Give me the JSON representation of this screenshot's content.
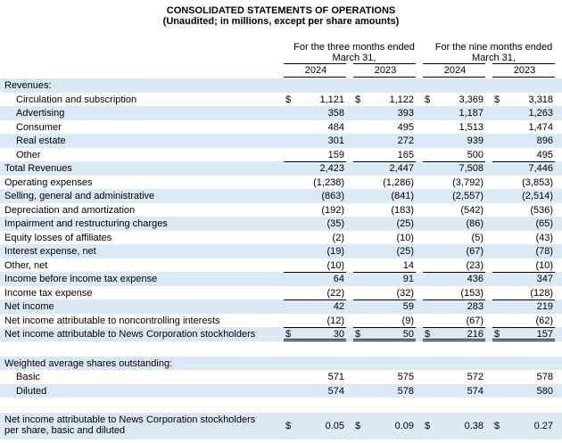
{
  "header": {
    "title": "CONSOLIDATED STATEMENTS OF OPERATIONS",
    "subtitle": "(Unaudited; in millions, except per share amounts)"
  },
  "columns": {
    "groups": [
      "For the three months ended March 31,",
      "For the nine months ended March 31,"
    ],
    "years": [
      "2024",
      "2023",
      "2024",
      "2023"
    ]
  },
  "currency": "$",
  "rows": [
    {
      "label": "Revenues:"
    },
    {
      "label": "Circulation and subscription",
      "indent": 1,
      "dollar": true,
      "cells": [
        "1,121",
        "1,122",
        "3,369",
        "3,318"
      ]
    },
    {
      "label": "Advertising",
      "indent": 1,
      "cells": [
        "358",
        "393",
        "1,187",
        "1,263"
      ]
    },
    {
      "label": "Consumer",
      "indent": 1,
      "cells": [
        "484",
        "495",
        "1,513",
        "1,474"
      ]
    },
    {
      "label": "Real estate",
      "indent": 1,
      "cells": [
        "301",
        "272",
        "939",
        "896"
      ]
    },
    {
      "label": "Other",
      "indent": 1,
      "cells": [
        "159",
        "165",
        "500",
        "495"
      ]
    },
    {
      "label": "Total Revenues",
      "rule": "single",
      "cells": [
        "2,423",
        "2,447",
        "7,508",
        "7,446"
      ]
    },
    {
      "label": "Operating expenses",
      "cells": [
        "(1,238)",
        "(1,286)",
        "(3,792)",
        "(3,853)"
      ]
    },
    {
      "label": "Selling, general and administrative",
      "cells": [
        "(863)",
        "(841)",
        "(2,557)",
        "(2,514)"
      ]
    },
    {
      "label": "Depreciation and amortization",
      "cells": [
        "(192)",
        "(183)",
        "(542)",
        "(536)"
      ]
    },
    {
      "label": "Impairment and restructuring charges",
      "cells": [
        "(35)",
        "(25)",
        "(86)",
        "(65)"
      ]
    },
    {
      "label": "Equity losses of affiliates",
      "cells": [
        "(2)",
        "(10)",
        "(5)",
        "(43)"
      ]
    },
    {
      "label": "Interest expense, net",
      "cells": [
        "(19)",
        "(25)",
        "(67)",
        "(78)"
      ]
    },
    {
      "label": "Other, net",
      "cells": [
        "(10)",
        "14",
        "(23)",
        "(10)"
      ]
    },
    {
      "label": "Income before income tax expense",
      "rule": "single",
      "cells": [
        "64",
        "91",
        "436",
        "347"
      ]
    },
    {
      "label": "Income tax expense",
      "cells": [
        "(22)",
        "(32)",
        "(153)",
        "(128)"
      ]
    },
    {
      "label": "Net income",
      "rule": "single",
      "cells": [
        "42",
        "59",
        "283",
        "219"
      ]
    },
    {
      "label": "Net income attributable to noncontrolling interests",
      "cells": [
        "(12)",
        "(9)",
        "(67)",
        "(62)"
      ]
    },
    {
      "label": "Net income attributable to News Corporation stockholders",
      "rule": "double",
      "dollar": true,
      "cells": [
        "30",
        "50",
        "216",
        "157"
      ]
    },
    {
      "label": "Weighted average shares outstanding:",
      "gap": true
    },
    {
      "label": "Basic",
      "indent": 1,
      "cells": [
        "571",
        "575",
        "572",
        "578"
      ]
    },
    {
      "label": "Diluted",
      "indent": 1,
      "cells": [
        "574",
        "578",
        "574",
        "580"
      ]
    },
    {
      "label": "Net income attributable to News Corporation stockholders per share, basic and diluted",
      "gap": true,
      "tall": true,
      "dollar": true,
      "cells": [
        "0.05",
        "0.09",
        "0.38",
        "0.27"
      ]
    }
  ]
}
